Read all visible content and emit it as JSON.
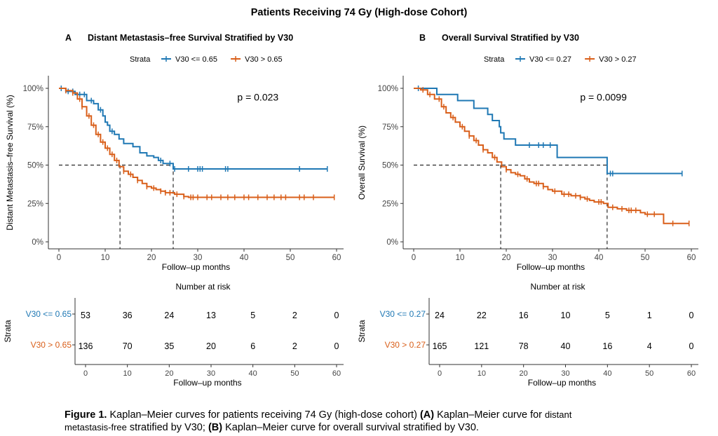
{
  "figure_title": "Patients Receiving 74 Gy (High-dose Cohort)",
  "colors": {
    "blue": "#1f78b4",
    "orange": "#d95f1a",
    "axis": "#333333",
    "tick": "#444444"
  },
  "chart_data": [
    {
      "type": "line",
      "subtype": "kaplan-meier",
      "panel_letter": "A",
      "title": "Distant Metastasis–free Survival Stratified by V30",
      "legend_title": "Strata",
      "ylabel": "Distant Metastasis–free Survival (%)",
      "xlabel": "Follow–up months",
      "xlim": [
        -2,
        62
      ],
      "ylim": [
        -0.05,
        1.08
      ],
      "x_ticks": [
        0,
        10,
        20,
        30,
        40,
        50,
        60
      ],
      "y_ticks": [
        0,
        0.25,
        0.5,
        0.75,
        1.0
      ],
      "y_tick_labels": [
        "0%",
        "25%",
        "50%",
        "75%",
        "100%"
      ],
      "pvalue_text": "p = 0.023",
      "pvalue_pos": [
        43,
        0.92
      ],
      "median_lines": [
        13.2,
        24.7
      ],
      "series": [
        {
          "name": "V30 <= 0.65",
          "color": "blue",
          "steps": [
            [
              0,
              1.0
            ],
            [
              1.5,
              0.98
            ],
            [
              3.5,
              0.96
            ],
            [
              6,
              0.92
            ],
            [
              7.5,
              0.9
            ],
            [
              8.5,
              0.86
            ],
            [
              9.5,
              0.82
            ],
            [
              10,
              0.78
            ],
            [
              10.5,
              0.76
            ],
            [
              11,
              0.72
            ],
            [
              12,
              0.7
            ],
            [
              13,
              0.67
            ],
            [
              14,
              0.64
            ],
            [
              16,
              0.62
            ],
            [
              17.5,
              0.58
            ],
            [
              19,
              0.56
            ],
            [
              20.5,
              0.55
            ],
            [
              21.5,
              0.53
            ],
            [
              22.5,
              0.51
            ],
            [
              24.7,
              0.475
            ],
            [
              58,
              0.475
            ]
          ],
          "censors": [
            0.5,
            2,
            3,
            4.5,
            5.5,
            7,
            9,
            11.5,
            22,
            24,
            25,
            28,
            30,
            30.5,
            31,
            36,
            36.5,
            52,
            58
          ]
        },
        {
          "name": "V30 > 0.65",
          "color": "orange",
          "steps": [
            [
              0,
              1.0
            ],
            [
              1.5,
              0.985
            ],
            [
              3,
              0.97
            ],
            [
              4,
              0.93
            ],
            [
              5,
              0.88
            ],
            [
              6,
              0.82
            ],
            [
              7,
              0.76
            ],
            [
              8,
              0.7
            ],
            [
              9,
              0.65
            ],
            [
              10,
              0.61
            ],
            [
              11,
              0.57
            ],
            [
              12,
              0.53
            ],
            [
              13,
              0.49
            ],
            [
              14,
              0.46
            ],
            [
              15,
              0.44
            ],
            [
              16,
              0.42
            ],
            [
              17,
              0.4
            ],
            [
              18,
              0.38
            ],
            [
              19,
              0.36
            ],
            [
              20,
              0.35
            ],
            [
              21,
              0.34
            ],
            [
              22,
              0.33
            ],
            [
              23,
              0.32
            ],
            [
              25,
              0.31
            ],
            [
              27,
              0.295
            ],
            [
              28,
              0.29
            ],
            [
              59.5,
              0.29
            ]
          ],
          "censors": [
            1.5,
            3,
            4.5,
            5,
            6.5,
            7.5,
            8.5,
            9.5,
            10.5,
            11.5,
            12.5,
            14,
            15.5,
            17,
            19,
            20.5,
            22,
            23,
            24,
            25.5,
            27,
            28.5,
            29,
            30,
            32,
            33,
            35,
            36.5,
            38,
            40,
            41,
            43,
            45,
            46.5,
            48,
            49,
            52,
            53,
            55,
            59.5
          ]
        }
      ],
      "risk_table": {
        "title": "Number at risk",
        "ylabel": "Strata",
        "xlabel": "Follow–up months",
        "rows": [
          {
            "label": "V30 <= 0.65",
            "color": "blue",
            "values": [
              "53",
              "36",
              "24",
              "13",
              "5",
              "2",
              "0"
            ]
          },
          {
            "label": "V30 > 0.65",
            "color": "orange",
            "values": [
              "136",
              "70",
              "35",
              "20",
              "6",
              "2",
              "0"
            ]
          }
        ]
      }
    },
    {
      "type": "line",
      "subtype": "kaplan-meier",
      "panel_letter": "B",
      "title": "Overall Survival Stratified by V30",
      "legend_title": "Strata",
      "ylabel": "Overall Survival (%)",
      "xlabel": "Follow–up months",
      "xlim": [
        -2,
        62
      ],
      "ylim": [
        -0.05,
        1.08
      ],
      "x_ticks": [
        0,
        10,
        20,
        30,
        40,
        50,
        60
      ],
      "y_ticks": [
        0,
        0.25,
        0.5,
        0.75,
        1.0
      ],
      "y_tick_labels": [
        "0%",
        "25%",
        "50%",
        "75%",
        "100%"
      ],
      "pvalue_text": "p = 0.0099",
      "pvalue_pos": [
        41,
        0.92
      ],
      "median_lines": [
        18.8,
        41.8
      ],
      "series": [
        {
          "name": "V30 <= 0.27",
          "color": "blue",
          "steps": [
            [
              0,
              1.0
            ],
            [
              5,
              0.96
            ],
            [
              9.5,
              0.92
            ],
            [
              13,
              0.87
            ],
            [
              16,
              0.83
            ],
            [
              17,
              0.79
            ],
            [
              18.5,
              0.75
            ],
            [
              18.8,
              0.71
            ],
            [
              19.5,
              0.67
            ],
            [
              22,
              0.63
            ],
            [
              31,
              0.55
            ],
            [
              41.8,
              0.445
            ],
            [
              58,
              0.445
            ]
          ],
          "censors": [
            1,
            25,
            27,
            28,
            29.5,
            42.5,
            43,
            58
          ]
        },
        {
          "name": "V30 > 0.27",
          "color": "orange",
          "steps": [
            [
              0,
              1.0
            ],
            [
              1.5,
              0.99
            ],
            [
              3,
              0.96
            ],
            [
              4.5,
              0.93
            ],
            [
              6,
              0.88
            ],
            [
              7,
              0.84
            ],
            [
              8,
              0.81
            ],
            [
              9,
              0.78
            ],
            [
              10,
              0.75
            ],
            [
              11,
              0.72
            ],
            [
              12,
              0.69
            ],
            [
              13,
              0.66
            ],
            [
              14,
              0.63
            ],
            [
              15,
              0.6
            ],
            [
              16,
              0.58
            ],
            [
              17,
              0.55
            ],
            [
              18,
              0.52
            ],
            [
              19,
              0.49
            ],
            [
              20,
              0.47
            ],
            [
              21,
              0.45
            ],
            [
              22,
              0.44
            ],
            [
              23,
              0.43
            ],
            [
              24,
              0.41
            ],
            [
              25,
              0.39
            ],
            [
              26,
              0.38
            ],
            [
              28,
              0.36
            ],
            [
              29,
              0.34
            ],
            [
              30,
              0.33
            ],
            [
              32,
              0.31
            ],
            [
              34,
              0.3
            ],
            [
              36,
              0.29
            ],
            [
              37,
              0.28
            ],
            [
              38,
              0.27
            ],
            [
              39,
              0.26
            ],
            [
              41,
              0.25
            ],
            [
              42,
              0.225
            ],
            [
              44,
              0.215
            ],
            [
              46,
              0.205
            ],
            [
              49,
              0.19
            ],
            [
              50,
              0.18
            ],
            [
              54,
              0.12
            ],
            [
              59.5,
              0.12
            ]
          ],
          "censors": [
            2,
            3.5,
            5.5,
            6.5,
            8.5,
            10.5,
            12,
            13.5,
            15,
            17.5,
            20,
            22.5,
            24.5,
            26.5,
            27,
            28,
            30.5,
            32.5,
            33.5,
            35,
            36,
            37.5,
            40,
            40.5,
            43,
            45,
            46.5,
            47,
            48,
            50.5,
            52,
            56,
            59.5
          ]
        }
      ],
      "risk_table": {
        "title": "Number at risk",
        "ylabel": "Strata",
        "xlabel": "Follow–up months",
        "rows": [
          {
            "label": "V30 <= 0.27",
            "color": "blue",
            "values": [
              "24",
              "22",
              "16",
              "10",
              "5",
              "1",
              "0"
            ]
          },
          {
            "label": "V30 > 0.27",
            "color": "orange",
            "values": [
              "165",
              "121",
              "78",
              "40",
              "16",
              "4",
              "0"
            ]
          }
        ]
      }
    }
  ],
  "caption": {
    "figure_label": "Figure 1.",
    "part1": " Kaplan–Meier curves for patients receiving 74 Gy (high-dose cohort) ",
    "label_a": "(A)",
    "part2": " Kaplan–Meier curve for ",
    "part2_small": "distant",
    "part3_small": "metastasis-free",
    "part3": " stratified by V30; ",
    "label_b": "(B)",
    "part4": " Kaplan–Meier curve for overall survival stratified by V30."
  }
}
